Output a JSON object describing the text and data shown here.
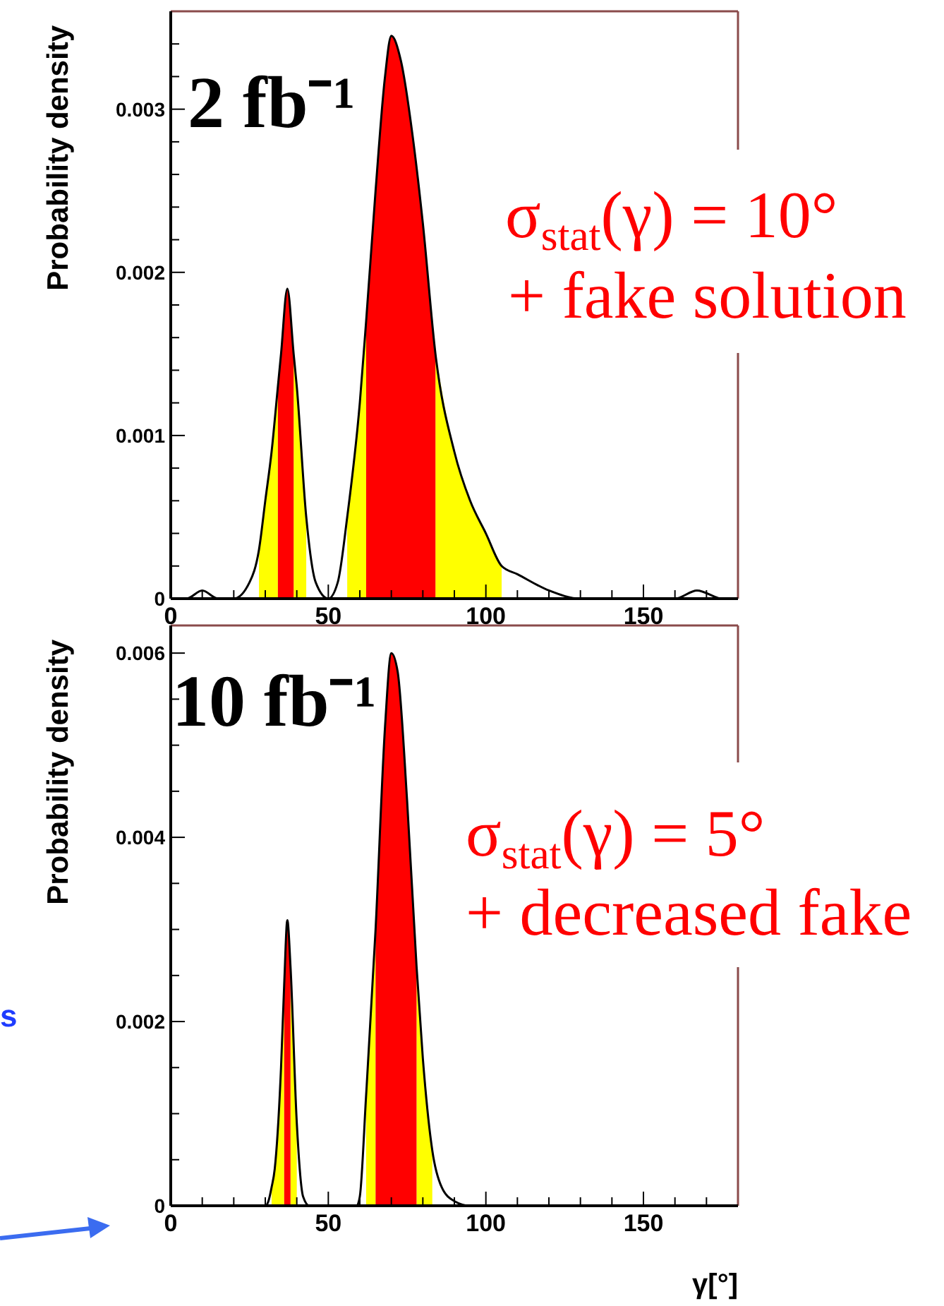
{
  "chart_data": [
    {
      "type": "line",
      "ylabel": "Probability density",
      "xlim": [
        0,
        180
      ],
      "ylim": [
        0,
        0.0036
      ],
      "xticks": [
        0,
        {
          "value": 10,
          "label": null
        },
        {
          "value": 20,
          "label": null
        },
        {
          "value": 30,
          "label": null
        },
        {
          "value": 40,
          "label": null
        },
        50,
        {
          "value": 60,
          "label": null
        },
        {
          "value": 70,
          "label": null
        },
        {
          "value": 80,
          "label": null
        },
        {
          "value": 90,
          "label": null
        },
        100,
        {
          "value": 110,
          "label": null
        },
        {
          "value": 120,
          "label": null
        },
        {
          "value": 130,
          "label": null
        },
        {
          "value": 140,
          "label": null
        },
        150,
        {
          "value": 160,
          "label": null
        },
        {
          "value": 170,
          "label": null
        }
      ],
      "yticks": [
        0,
        {
          "value": 0.0002,
          "label": null
        },
        {
          "value": 0.0004,
          "label": null
        },
        {
          "value": 0.0006,
          "label": null
        },
        {
          "value": 0.0008,
          "label": null
        },
        0.001,
        {
          "value": 0.0012,
          "label": null
        },
        {
          "value": 0.0014,
          "label": null
        },
        {
          "value": 0.0016,
          "label": null
        },
        {
          "value": 0.0018,
          "label": null
        },
        0.002,
        {
          "value": 0.0022,
          "label": null
        },
        {
          "value": 0.0024,
          "label": null
        },
        {
          "value": 0.0026,
          "label": null
        },
        {
          "value": 0.0028,
          "label": null
        },
        0.003,
        {
          "value": 0.0032,
          "label": null
        },
        {
          "value": 0.0034,
          "label": null
        }
      ],
      "annotations": [
        "2 fb⁻¹",
        "σ$_{stat}$(γ) = 10°",
        "+ fake solution"
      ],
      "series": [
        {
          "type": "area",
          "color": "#ffff00",
          "x": [
            28,
            30,
            32,
            34,
            36,
            39,
            40,
            43,
            50,
            56,
            60,
            62,
            70,
            84,
            90,
            95,
            100,
            105
          ],
          "values": [
            0.0003,
            0.0006,
            0.0009,
            0.0013,
            null,
            0.0015,
            0.0013,
            0.0005,
            null,
            0.0005,
            0.0012,
            0.0017,
            null,
            0.0015,
            0.0009,
            0.0006,
            0.0004,
            0.0002
          ]
        },
        {
          "type": "area",
          "color": "#ff0000",
          "x": [
            34,
            35,
            37,
            39,
            50,
            62,
            65,
            68,
            70,
            73,
            77,
            80,
            84
          ],
          "values": [
            0.0013,
            0.0015,
            0.0019,
            0.0015,
            null,
            0.0017,
            0.0025,
            0.0032,
            0.00345,
            0.0033,
            0.0028,
            0.0023,
            0.0015
          ]
        },
        {
          "type": "line",
          "color": "#000000",
          "x": [
            0,
            5,
            10,
            15,
            20,
            25,
            28,
            30,
            32,
            34,
            35,
            37,
            39,
            40,
            43,
            46,
            50,
            53,
            56,
            60,
            62,
            65,
            68,
            70,
            73,
            77,
            80,
            84,
            90,
            95,
            100,
            105,
            110,
            120,
            130,
            140,
            150,
            160,
            167,
            175,
            180
          ],
          "values": [
            0,
            0,
            5e-05,
            0,
            0,
            0.0001,
            0.0003,
            0.0006,
            0.0009,
            0.0013,
            0.0015,
            0.0019,
            0.0015,
            0.0013,
            0.0005,
            0.0001,
            0,
            0.0001,
            0.0005,
            0.0012,
            0.0017,
            0.0025,
            0.0032,
            0.00345,
            0.0033,
            0.0028,
            0.0023,
            0.0015,
            0.0009,
            0.0006,
            0.0004,
            0.0002,
            0.00015,
            5e-05,
            0,
            0,
            0,
            0,
            5e-05,
            0,
            0
          ]
        }
      ]
    },
    {
      "type": "line",
      "ylabel": "Probability density",
      "xlabel": "γ[°]",
      "xlim": [
        0,
        180
      ],
      "ylim": [
        0,
        0.0063
      ],
      "xticks": [
        0,
        {
          "value": 10,
          "label": null
        },
        {
          "value": 20,
          "label": null
        },
        {
          "value": 30,
          "label": null
        },
        {
          "value": 40,
          "label": null
        },
        50,
        {
          "value": 60,
          "label": null
        },
        {
          "value": 70,
          "label": null
        },
        {
          "value": 80,
          "label": null
        },
        {
          "value": 90,
          "label": null
        },
        100,
        {
          "value": 110,
          "label": null
        },
        {
          "value": 120,
          "label": null
        },
        {
          "value": 130,
          "label": null
        },
        {
          "value": 140,
          "label": null
        },
        150,
        {
          "value": 160,
          "label": null
        },
        {
          "value": 170,
          "label": null
        }
      ],
      "yticks": [
        0,
        {
          "value": 0.0005,
          "label": null
        },
        {
          "value": 0.001,
          "label": null
        },
        {
          "value": 0.0015,
          "label": null
        },
        0.002,
        {
          "value": 0.0025,
          "label": null
        },
        {
          "value": 0.003,
          "label": null
        },
        {
          "value": 0.0035,
          "label": null
        },
        0.004,
        {
          "value": 0.0045,
          "label": null
        },
        {
          "value": 0.005,
          "label": null
        },
        {
          "value": 0.0055,
          "label": null
        },
        0.006
      ],
      "annotations": [
        "10 fb⁻¹",
        "σ$_{stat}$(γ) = 5°",
        "+ decreased fake",
        "s"
      ],
      "series": [
        {
          "type": "area",
          "color": "#ffff00",
          "x": [
            32,
            33,
            35,
            36,
            37,
            38,
            40,
            50,
            62,
            65,
            70,
            78,
            80,
            83
          ],
          "values": [
            0.0002,
            0.0004,
            0.0015,
            0.0024,
            null,
            0.0026,
            0.0009,
            null,
            0.0012,
            0.003,
            null,
            0.0026,
            0.0016,
            0.0006
          ]
        },
        {
          "type": "area",
          "color": "#ff0000",
          "x": [
            36,
            37,
            38,
            50,
            65,
            68,
            70,
            72,
            75,
            78
          ],
          "values": [
            0.0024,
            0.0031,
            0.0026,
            null,
            0.003,
            0.0052,
            0.006,
            0.0058,
            0.0044,
            0.0026
          ]
        },
        {
          "type": "line",
          "color": "#000000",
          "x": [
            0,
            30,
            31,
            32,
            33,
            35,
            36,
            37,
            38,
            40,
            42,
            44,
            59,
            60,
            62,
            65,
            68,
            70,
            72,
            75,
            78,
            80,
            83,
            86,
            90,
            95,
            180
          ],
          "values": [
            0,
            0,
            5e-05,
            0.0002,
            0.0004,
            0.0015,
            0.0024,
            0.0031,
            0.0026,
            0.0009,
            0.0001,
            0,
            0,
            0.0001,
            0.0012,
            0.003,
            0.0052,
            0.006,
            0.0058,
            0.0044,
            0.0026,
            0.0016,
            0.0006,
            0.0002,
            5e-05,
            0,
            0
          ]
        }
      ]
    }
  ]
}
